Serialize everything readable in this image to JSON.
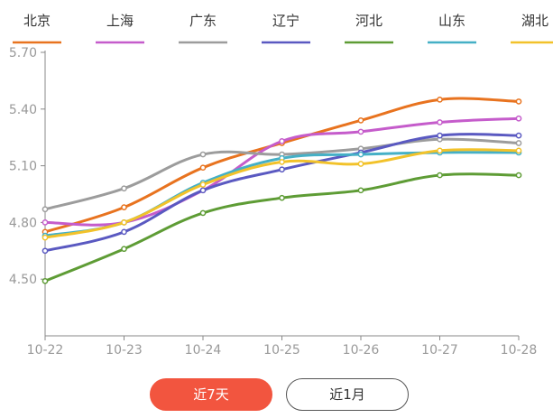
{
  "chart_data": {
    "type": "line",
    "title": "",
    "xlabel": "",
    "ylabel": "",
    "x": [
      "10-22",
      "10-23",
      "10-24",
      "10-25",
      "10-26",
      "10-27",
      "10-28"
    ],
    "ylim": [
      4.2,
      5.7
    ],
    "yticks": [
      "4.50",
      "4.80",
      "5.10",
      "5.40",
      "5.70"
    ],
    "legend": "top",
    "grid": false,
    "series": [
      {
        "name": "北京",
        "color": "#e8731f",
        "values": [
          4.75,
          4.88,
          5.09,
          5.22,
          5.34,
          5.45,
          5.44
        ]
      },
      {
        "name": "上海",
        "color": "#c55ccb",
        "values": [
          4.8,
          4.8,
          4.97,
          5.23,
          5.28,
          5.33,
          5.35
        ]
      },
      {
        "name": "广东",
        "color": "#9c9c9c",
        "values": [
          4.87,
          4.98,
          5.16,
          5.16,
          5.19,
          5.24,
          5.22
        ]
      },
      {
        "name": "辽宁",
        "color": "#5a59c1",
        "values": [
          4.65,
          4.75,
          4.97,
          5.08,
          5.17,
          5.26,
          5.26
        ]
      },
      {
        "name": "河北",
        "color": "#5e9c35",
        "values": [
          4.49,
          4.66,
          4.85,
          4.93,
          4.97,
          5.05,
          5.05
        ]
      },
      {
        "name": "山东",
        "color": "#45b0c6",
        "values": [
          4.73,
          4.8,
          5.01,
          5.14,
          5.16,
          5.17,
          5.17
        ]
      },
      {
        "name": "湖北",
        "color": "#f2c22a",
        "values": [
          4.72,
          4.8,
          5.0,
          5.12,
          5.11,
          5.18,
          5.18
        ]
      }
    ]
  },
  "buttons": {
    "week_label": "近7天",
    "month_label": "近1月",
    "active_color": "#f2553f"
  }
}
